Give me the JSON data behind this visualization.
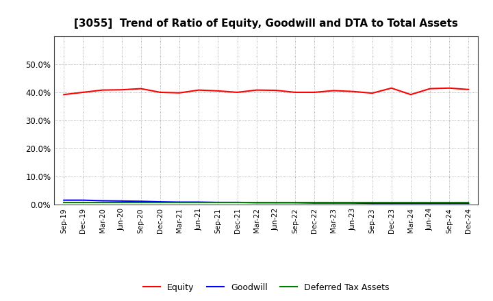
{
  "title": "[3055]  Trend of Ratio of Equity, Goodwill and DTA to Total Assets",
  "x_labels": [
    "Sep-19",
    "Dec-19",
    "Mar-20",
    "Jun-20",
    "Sep-20",
    "Dec-20",
    "Mar-21",
    "Jun-21",
    "Sep-21",
    "Dec-21",
    "Mar-22",
    "Jun-22",
    "Sep-22",
    "Dec-22",
    "Mar-23",
    "Jun-23",
    "Sep-23",
    "Dec-23",
    "Mar-24",
    "Jun-24",
    "Sep-24",
    "Dec-24"
  ],
  "equity": [
    0.392,
    0.4,
    0.408,
    0.409,
    0.413,
    0.4,
    0.398,
    0.408,
    0.405,
    0.4,
    0.408,
    0.407,
    0.4,
    0.4,
    0.406,
    0.403,
    0.397,
    0.415,
    0.392,
    0.413,
    0.415,
    0.41
  ],
  "goodwill": [
    0.016,
    0.016,
    0.014,
    0.013,
    0.012,
    0.01,
    0.009,
    0.009,
    0.008,
    0.008,
    0.007,
    0.007,
    0.007,
    0.006,
    0.006,
    0.006,
    0.005,
    0.005,
    0.005,
    0.005,
    0.005,
    0.005
  ],
  "dta": [
    0.008,
    0.008,
    0.008,
    0.008,
    0.008,
    0.008,
    0.008,
    0.008,
    0.008,
    0.008,
    0.008,
    0.008,
    0.008,
    0.008,
    0.008,
    0.008,
    0.008,
    0.008,
    0.008,
    0.008,
    0.008,
    0.008
  ],
  "equity_color": "#ff0000",
  "goodwill_color": "#0000ff",
  "dta_color": "#008000",
  "ylim": [
    0.0,
    0.6
  ],
  "yticks": [
    0.0,
    0.1,
    0.2,
    0.3,
    0.4,
    0.5
  ],
  "background_color": "#ffffff",
  "plot_bg_color": "#ffffff",
  "grid_color": "#999999",
  "title_fontsize": 11,
  "legend_labels": [
    "Equity",
    "Goodwill",
    "Deferred Tax Assets"
  ]
}
